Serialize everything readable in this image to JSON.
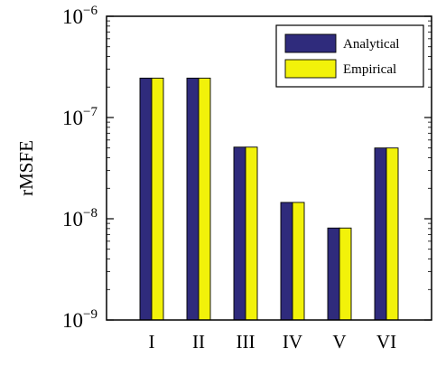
{
  "chart_data": {
    "type": "bar",
    "scale": "log",
    "categories": [
      "I",
      "II",
      "III",
      "IV",
      "V",
      "VI"
    ],
    "series": [
      {
        "name": "Analytical",
        "color": "#2f2b7c",
        "values": [
          2.45e-07,
          2.45e-07,
          5.1e-08,
          1.45e-08,
          8.1e-09,
          5e-08
        ]
      },
      {
        "name": "Empirical",
        "color": "#f2f20a",
        "values": [
          2.45e-07,
          2.45e-07,
          5.1e-08,
          1.45e-08,
          8.1e-09,
          5e-08
        ]
      }
    ],
    "ylabel": "rMSFE",
    "xlabel": "",
    "title": "",
    "ylim": [
      1e-09,
      1e-06
    ],
    "yticks": [
      {
        "value": 1e-09,
        "base": "10",
        "exp": "−9"
      },
      {
        "value": 1e-08,
        "base": "10",
        "exp": "−8"
      },
      {
        "value": 1e-07,
        "base": "10",
        "exp": "−7"
      },
      {
        "value": 1e-06,
        "base": "10",
        "exp": "−6"
      }
    ],
    "grid": false,
    "legend_position": "top-right"
  }
}
